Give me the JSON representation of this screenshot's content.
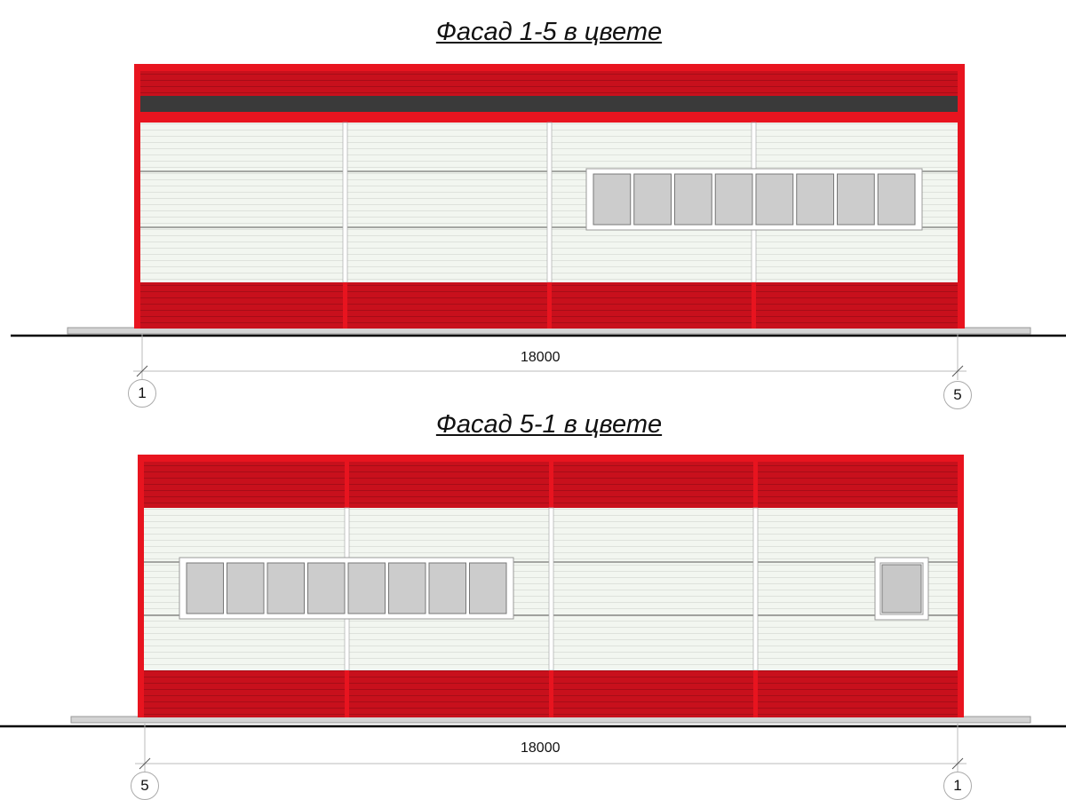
{
  "facades": [
    {
      "title": "Фасад 1-5 в цвете",
      "dimension": "18000",
      "axis_left": "1",
      "axis_right": "5"
    },
    {
      "title": "Фасад 5-1 в цвете",
      "dimension": "18000",
      "axis_left": "5",
      "axis_right": "1"
    }
  ],
  "colors": {
    "red": "#e8141f",
    "red_dark": "#c8101c",
    "panel_white": "#f2f6f0",
    "dark_band": "#3a3a3a",
    "glass": "#cccccc"
  }
}
